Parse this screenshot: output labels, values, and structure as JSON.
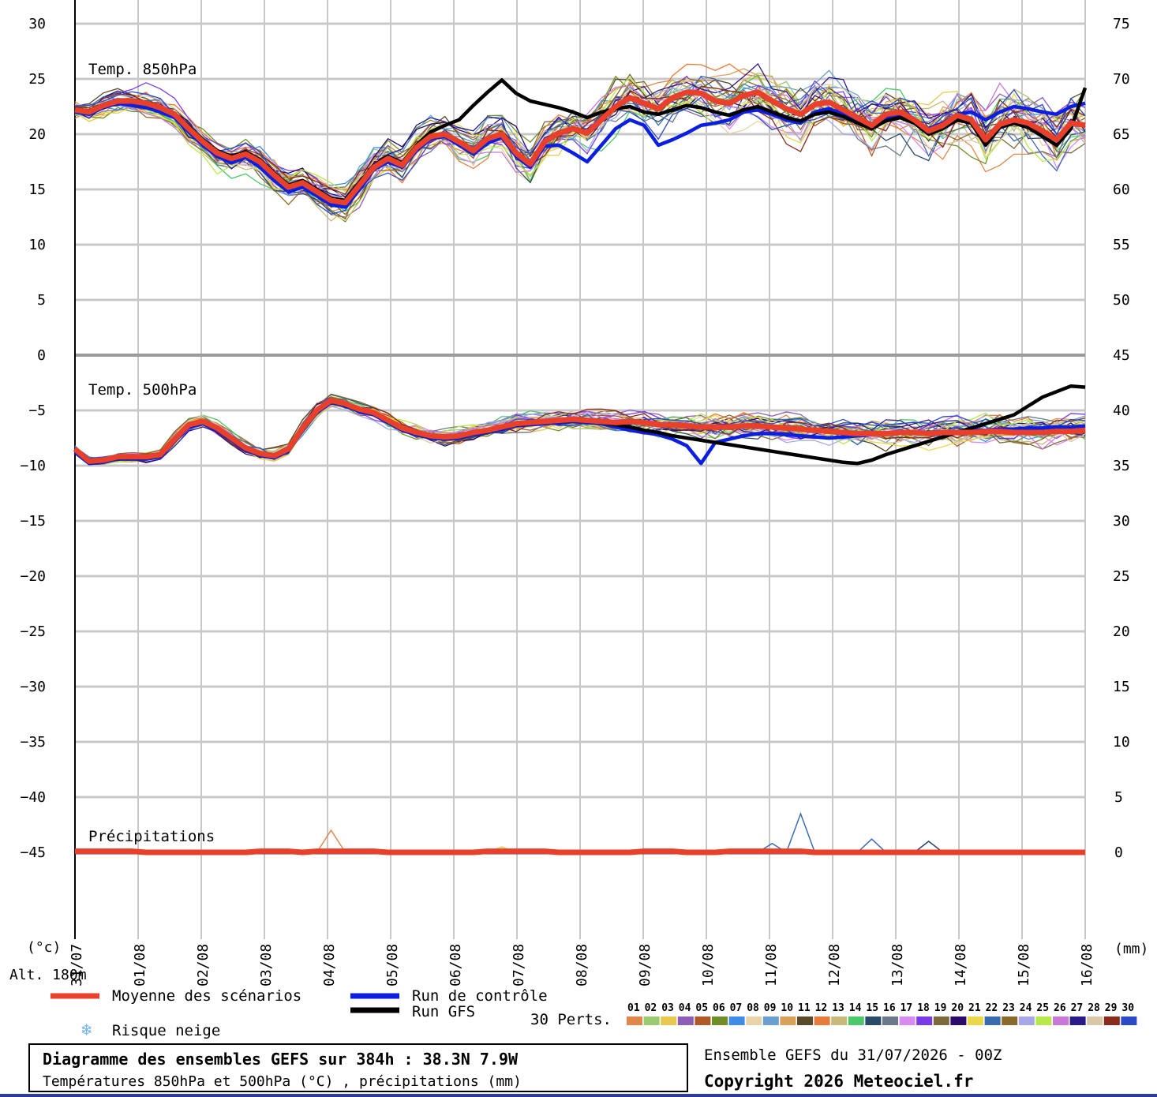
{
  "labels": {
    "unit_left": "(°c)",
    "unit_right": "(mm)",
    "altitude": "Alt. 180m",
    "panel_850": "Temp. 850hPa",
    "panel_500": "Temp. 500hPa",
    "panel_precip": "Précipitations"
  },
  "legend": {
    "mean": "Moyenne des scénarios",
    "control": "Run de contrôle",
    "gfs": "Run GFS",
    "snow": "Risque neige",
    "perts": "30 Perts."
  },
  "footer": {
    "title": "Diagramme des ensembles GEFS sur 384h : 38.3N 7.9W",
    "subtitle": "Températures 850hPa et 500hPa (°C) , précipitations (mm)",
    "run_info": "Ensemble GEFS du 31/07/2026 - 00Z",
    "copyright": "Copyright 2026 Meteociel.fr"
  },
  "colors": {
    "mean": "#e8402a",
    "control": "#0a1fe0",
    "gfs": "#000000",
    "snow": "#6fb3f0",
    "grid_major": "#c8c8c8",
    "grid_minor": "#e0e0e0",
    "footer_rule": "#2a3f8f"
  },
  "perturbations": {
    "numbers": [
      "01",
      "02",
      "03",
      "04",
      "05",
      "06",
      "07",
      "08",
      "09",
      "10",
      "11",
      "12",
      "13",
      "14",
      "15",
      "16",
      "17",
      "18",
      "19",
      "20",
      "21",
      "22",
      "23",
      "24",
      "25",
      "26",
      "27",
      "28",
      "29",
      "30"
    ],
    "colors": [
      "#e2874b",
      "#9acb72",
      "#e8c84a",
      "#8e5db8",
      "#b05a2a",
      "#6f8f26",
      "#3d8de8",
      "#e8d4a8",
      "#6a9fd0",
      "#d9a05a",
      "#5a4a2a",
      "#e87a3a",
      "#c8b87a",
      "#4ac86a",
      "#2a4a6a",
      "#6a7a8a",
      "#d78af0",
      "#7a3ae8",
      "#7a6a3a",
      "#2a0a6a",
      "#e8d84a",
      "#3a6ab0",
      "#8a6a2a",
      "#a8a8e8",
      "#b8e84a",
      "#c878d8",
      "#2a1a8a",
      "#d8c8a8",
      "#8a2a1a",
      "#2a4ac8"
    ]
  },
  "chart_data": [
    {
      "type": "line",
      "title": "Temp. 850hPa",
      "ylabel": "(°c)",
      "ylim": [
        0,
        30
      ],
      "x_ticks": [
        "31/07",
        "01/08",
        "02/08",
        "03/08",
        "04/08",
        "05/08",
        "06/08",
        "07/08",
        "08/08",
        "09/08",
        "10/08",
        "11/08",
        "12/08",
        "13/08",
        "14/08",
        "15/08",
        "16/08"
      ],
      "x_step_hours": 6,
      "series": [
        {
          "name": "Moyenne des scénarios",
          "values": [
            22.2,
            22.0,
            22.6,
            23.0,
            23.0,
            22.8,
            22.4,
            21.8,
            20.5,
            19.3,
            18.3,
            17.8,
            18.2,
            17.5,
            16.3,
            15.2,
            15.6,
            14.8,
            14.0,
            13.8,
            15.4,
            17.0,
            17.8,
            17.2,
            18.8,
            19.8,
            20.0,
            19.3,
            18.5,
            19.6,
            20.0,
            18.3,
            17.3,
            19.3,
            20.1,
            20.5,
            20.1,
            21.3,
            22.5,
            23.3,
            22.8,
            22.3,
            23.3,
            23.8,
            23.7,
            23.0,
            22.8,
            23.5,
            23.8,
            23.0,
            22.3,
            21.8,
            22.7,
            22.9,
            22.2,
            21.5,
            20.8,
            21.8,
            22.0,
            21.3,
            20.3,
            20.8,
            21.7,
            21.3,
            19.5,
            20.9,
            21.3,
            21.0,
            20.3,
            19.5,
            21.0,
            20.8
          ]
        },
        {
          "name": "Run de contrôle",
          "values": [
            22.0,
            21.8,
            22.4,
            22.8,
            22.6,
            22.4,
            22.0,
            21.5,
            20.2,
            19.0,
            18.0,
            17.4,
            17.9,
            17.0,
            15.8,
            14.8,
            15.2,
            14.4,
            13.6,
            13.4,
            15.0,
            16.8,
            17.5,
            17.0,
            18.5,
            19.6,
            19.8,
            19.0,
            18.2,
            19.2,
            19.7,
            18.0,
            17.0,
            18.9,
            19.0,
            18.3,
            17.5,
            19.0,
            20.5,
            21.3,
            20.8,
            19.0,
            19.5,
            20.1,
            20.8,
            21.0,
            21.3,
            22.0,
            22.2,
            21.8,
            21.3,
            21.0,
            22.0,
            22.3,
            21.8,
            21.0,
            20.6,
            21.5,
            21.8,
            21.0,
            20.5,
            21.0,
            21.8,
            22.0,
            21.3,
            22.0,
            22.5,
            22.3,
            22.0,
            21.8,
            22.5,
            22.8
          ]
        },
        {
          "name": "Run GFS",
          "values": [
            22.3,
            22.1,
            22.7,
            23.1,
            23.1,
            22.9,
            22.5,
            21.9,
            20.7,
            19.5,
            18.5,
            18.0,
            18.4,
            17.7,
            16.5,
            15.4,
            15.8,
            15.0,
            14.2,
            14.0,
            15.6,
            17.2,
            18.0,
            17.4,
            19.0,
            20.2,
            20.8,
            21.3,
            22.6,
            23.8,
            24.9,
            23.7,
            23.0,
            22.7,
            22.4,
            22.0,
            21.5,
            22.0,
            22.3,
            22.5,
            22.0,
            21.8,
            22.2,
            22.6,
            22.4,
            22.0,
            21.7,
            22.2,
            22.5,
            22.0,
            21.5,
            21.2,
            21.8,
            22.0,
            21.6,
            21.0,
            20.5,
            21.2,
            21.5,
            21.0,
            20.0,
            20.5,
            21.3,
            21.0,
            19.0,
            20.6,
            21.0,
            20.6,
            19.8,
            19.0,
            20.5,
            24.2
          ]
        }
      ]
    },
    {
      "type": "line",
      "title": "Temp. 500hPa",
      "ylabel": "(°c)",
      "ylim": [
        -45,
        0
      ],
      "x_ticks": [
        "31/07",
        "01/08",
        "02/08",
        "03/08",
        "04/08",
        "05/08",
        "06/08",
        "07/08",
        "08/08",
        "09/08",
        "10/08",
        "11/08",
        "12/08",
        "13/08",
        "14/08",
        "15/08",
        "16/08"
      ],
      "x_step_hours": 6,
      "series": [
        {
          "name": "Moyenne des scénarios",
          "values": [
            -8.5,
            -9.6,
            -9.5,
            -9.2,
            -9.2,
            -9.2,
            -9.0,
            -7.6,
            -6.3,
            -6.0,
            -6.6,
            -7.5,
            -8.4,
            -8.9,
            -9.1,
            -8.5,
            -6.6,
            -5.0,
            -4.1,
            -4.4,
            -4.9,
            -5.2,
            -5.9,
            -6.6,
            -7.0,
            -7.3,
            -7.4,
            -7.3,
            -7.0,
            -6.8,
            -6.5,
            -6.2,
            -6.1,
            -6.0,
            -5.9,
            -5.8,
            -5.9,
            -6.0,
            -6.1,
            -6.0,
            -6.1,
            -6.3,
            -6.3,
            -6.4,
            -6.5,
            -6.5,
            -6.5,
            -6.4,
            -6.4,
            -6.5,
            -6.6,
            -6.7,
            -6.8,
            -6.9,
            -7.0,
            -7.1,
            -7.1,
            -7.1,
            -7.0,
            -7.0,
            -7.1,
            -7.0,
            -7.0,
            -7.0,
            -6.9,
            -6.9,
            -7.0,
            -7.0,
            -7.0,
            -6.9,
            -6.9,
            -6.8
          ]
        },
        {
          "name": "Run de contrôle",
          "values": [
            -8.8,
            -9.8,
            -9.7,
            -9.4,
            -9.4,
            -9.4,
            -9.2,
            -7.8,
            -6.5,
            -6.2,
            -6.8,
            -7.7,
            -8.6,
            -9.1,
            -9.3,
            -8.7,
            -6.8,
            -5.2,
            -4.3,
            -4.6,
            -5.1,
            -5.4,
            -6.1,
            -6.8,
            -7.2,
            -7.5,
            -7.6,
            -7.5,
            -7.2,
            -7.0,
            -6.7,
            -6.4,
            -6.3,
            -6.2,
            -6.1,
            -6.0,
            -6.1,
            -6.2,
            -6.5,
            -6.8,
            -7.0,
            -7.2,
            -7.6,
            -8.2,
            -9.8,
            -7.9,
            -7.6,
            -7.3,
            -7.1,
            -7.1,
            -7.2,
            -7.3,
            -7.4,
            -7.5,
            -7.4,
            -7.3,
            -7.2,
            -7.1,
            -7.0,
            -7.0,
            -7.0,
            -6.9,
            -6.9,
            -6.8,
            -6.8,
            -6.7,
            -6.7,
            -6.6,
            -6.6,
            -6.5,
            -6.5,
            -6.4
          ]
        },
        {
          "name": "Run GFS",
          "values": [
            -8.6,
            -9.7,
            -9.6,
            -9.3,
            -9.3,
            -9.3,
            -9.1,
            -7.7,
            -6.4,
            -6.1,
            -6.7,
            -7.6,
            -8.5,
            -9.0,
            -9.2,
            -8.6,
            -6.7,
            -5.1,
            -4.2,
            -4.5,
            -5.0,
            -5.3,
            -6.0,
            -6.7,
            -7.1,
            -7.4,
            -7.5,
            -7.4,
            -7.1,
            -6.9,
            -6.6,
            -6.3,
            -6.2,
            -6.1,
            -6.0,
            -5.9,
            -6.0,
            -6.1,
            -6.3,
            -6.5,
            -6.8,
            -7.0,
            -7.3,
            -7.5,
            -7.7,
            -7.9,
            -8.1,
            -8.3,
            -8.5,
            -8.7,
            -8.9,
            -9.1,
            -9.3,
            -9.5,
            -9.7,
            -9.8,
            -9.5,
            -9.0,
            -8.6,
            -8.2,
            -7.8,
            -7.4,
            -7.0,
            -6.6,
            -6.2,
            -5.8,
            -5.4,
            -4.6,
            -3.8,
            -3.3,
            -2.8,
            -2.9
          ]
        }
      ]
    },
    {
      "type": "line",
      "title": "Précipitations",
      "ylabel": "(mm)",
      "ylim": [
        0,
        75
      ],
      "x_ticks": [
        "31/07",
        "01/08",
        "02/08",
        "03/08",
        "04/08",
        "05/08",
        "06/08",
        "07/08",
        "08/08",
        "09/08",
        "10/08",
        "11/08",
        "12/08",
        "13/08",
        "14/08",
        "15/08",
        "16/08"
      ],
      "x_step_hours": 6,
      "series": [
        {
          "name": "Moyenne des scénarios",
          "values": [
            0.1,
            0.1,
            0.1,
            0.1,
            0.1,
            0.0,
            0.0,
            0.0,
            0.0,
            0.0,
            0.0,
            0.0,
            0.0,
            0.1,
            0.1,
            0.1,
            0.0,
            0.1,
            0.1,
            0.1,
            0.1,
            0.1,
            0.0,
            0.0,
            0.0,
            0.0,
            0.0,
            0.0,
            0.0,
            0.1,
            0.1,
            0.1,
            0.1,
            0.1,
            0.0,
            0.0,
            0.0,
            0.0,
            0.0,
            0.0,
            0.1,
            0.1,
            0.1,
            0.0,
            0.0,
            0.0,
            0.1,
            0.1,
            0.1,
            0.1,
            0.1,
            0.1,
            0.0,
            0.0,
            0.0,
            0.0,
            0.0,
            0.0,
            0.0,
            0.0,
            0.0,
            0.0,
            0.0,
            0.0,
            0.0,
            0.0,
            0.0,
            0.0,
            0.0,
            0.0,
            0.0,
            0.0
          ]
        },
        {
          "name": "Run de contrôle",
          "values": [
            0,
            0,
            0,
            0,
            0,
            0,
            0,
            0,
            0,
            0,
            0,
            0,
            0,
            0,
            0,
            0,
            0,
            0,
            0,
            0,
            0,
            0,
            0,
            0,
            0,
            0,
            0,
            0,
            0,
            0,
            0,
            0,
            0,
            0,
            0,
            0,
            0,
            0,
            0,
            0,
            0,
            0,
            0,
            0,
            0,
            0,
            0,
            0,
            0,
            0,
            0,
            0,
            0,
            0,
            0,
            0,
            0,
            0,
            0,
            0,
            0,
            0,
            0,
            0,
            0,
            0,
            0,
            0,
            0,
            0,
            0,
            0
          ]
        },
        {
          "name": "Run GFS",
          "values": [
            0,
            0,
            0,
            0,
            0,
            0,
            0,
            0,
            0,
            0,
            0,
            0,
            0,
            0,
            0,
            0,
            0,
            0,
            0,
            0,
            0,
            0,
            0,
            0,
            0,
            0,
            0,
            0,
            0,
            0,
            0,
            0,
            0,
            0,
            0,
            0,
            0,
            0,
            0,
            0,
            0,
            0,
            0,
            0,
            0,
            0,
            0,
            0,
            0,
            0,
            0,
            0,
            0,
            0,
            0,
            0,
            0,
            0,
            0,
            0,
            0,
            0,
            0,
            0,
            0,
            0,
            0,
            0,
            0,
            0,
            0,
            0
          ]
        }
      ]
    }
  ]
}
